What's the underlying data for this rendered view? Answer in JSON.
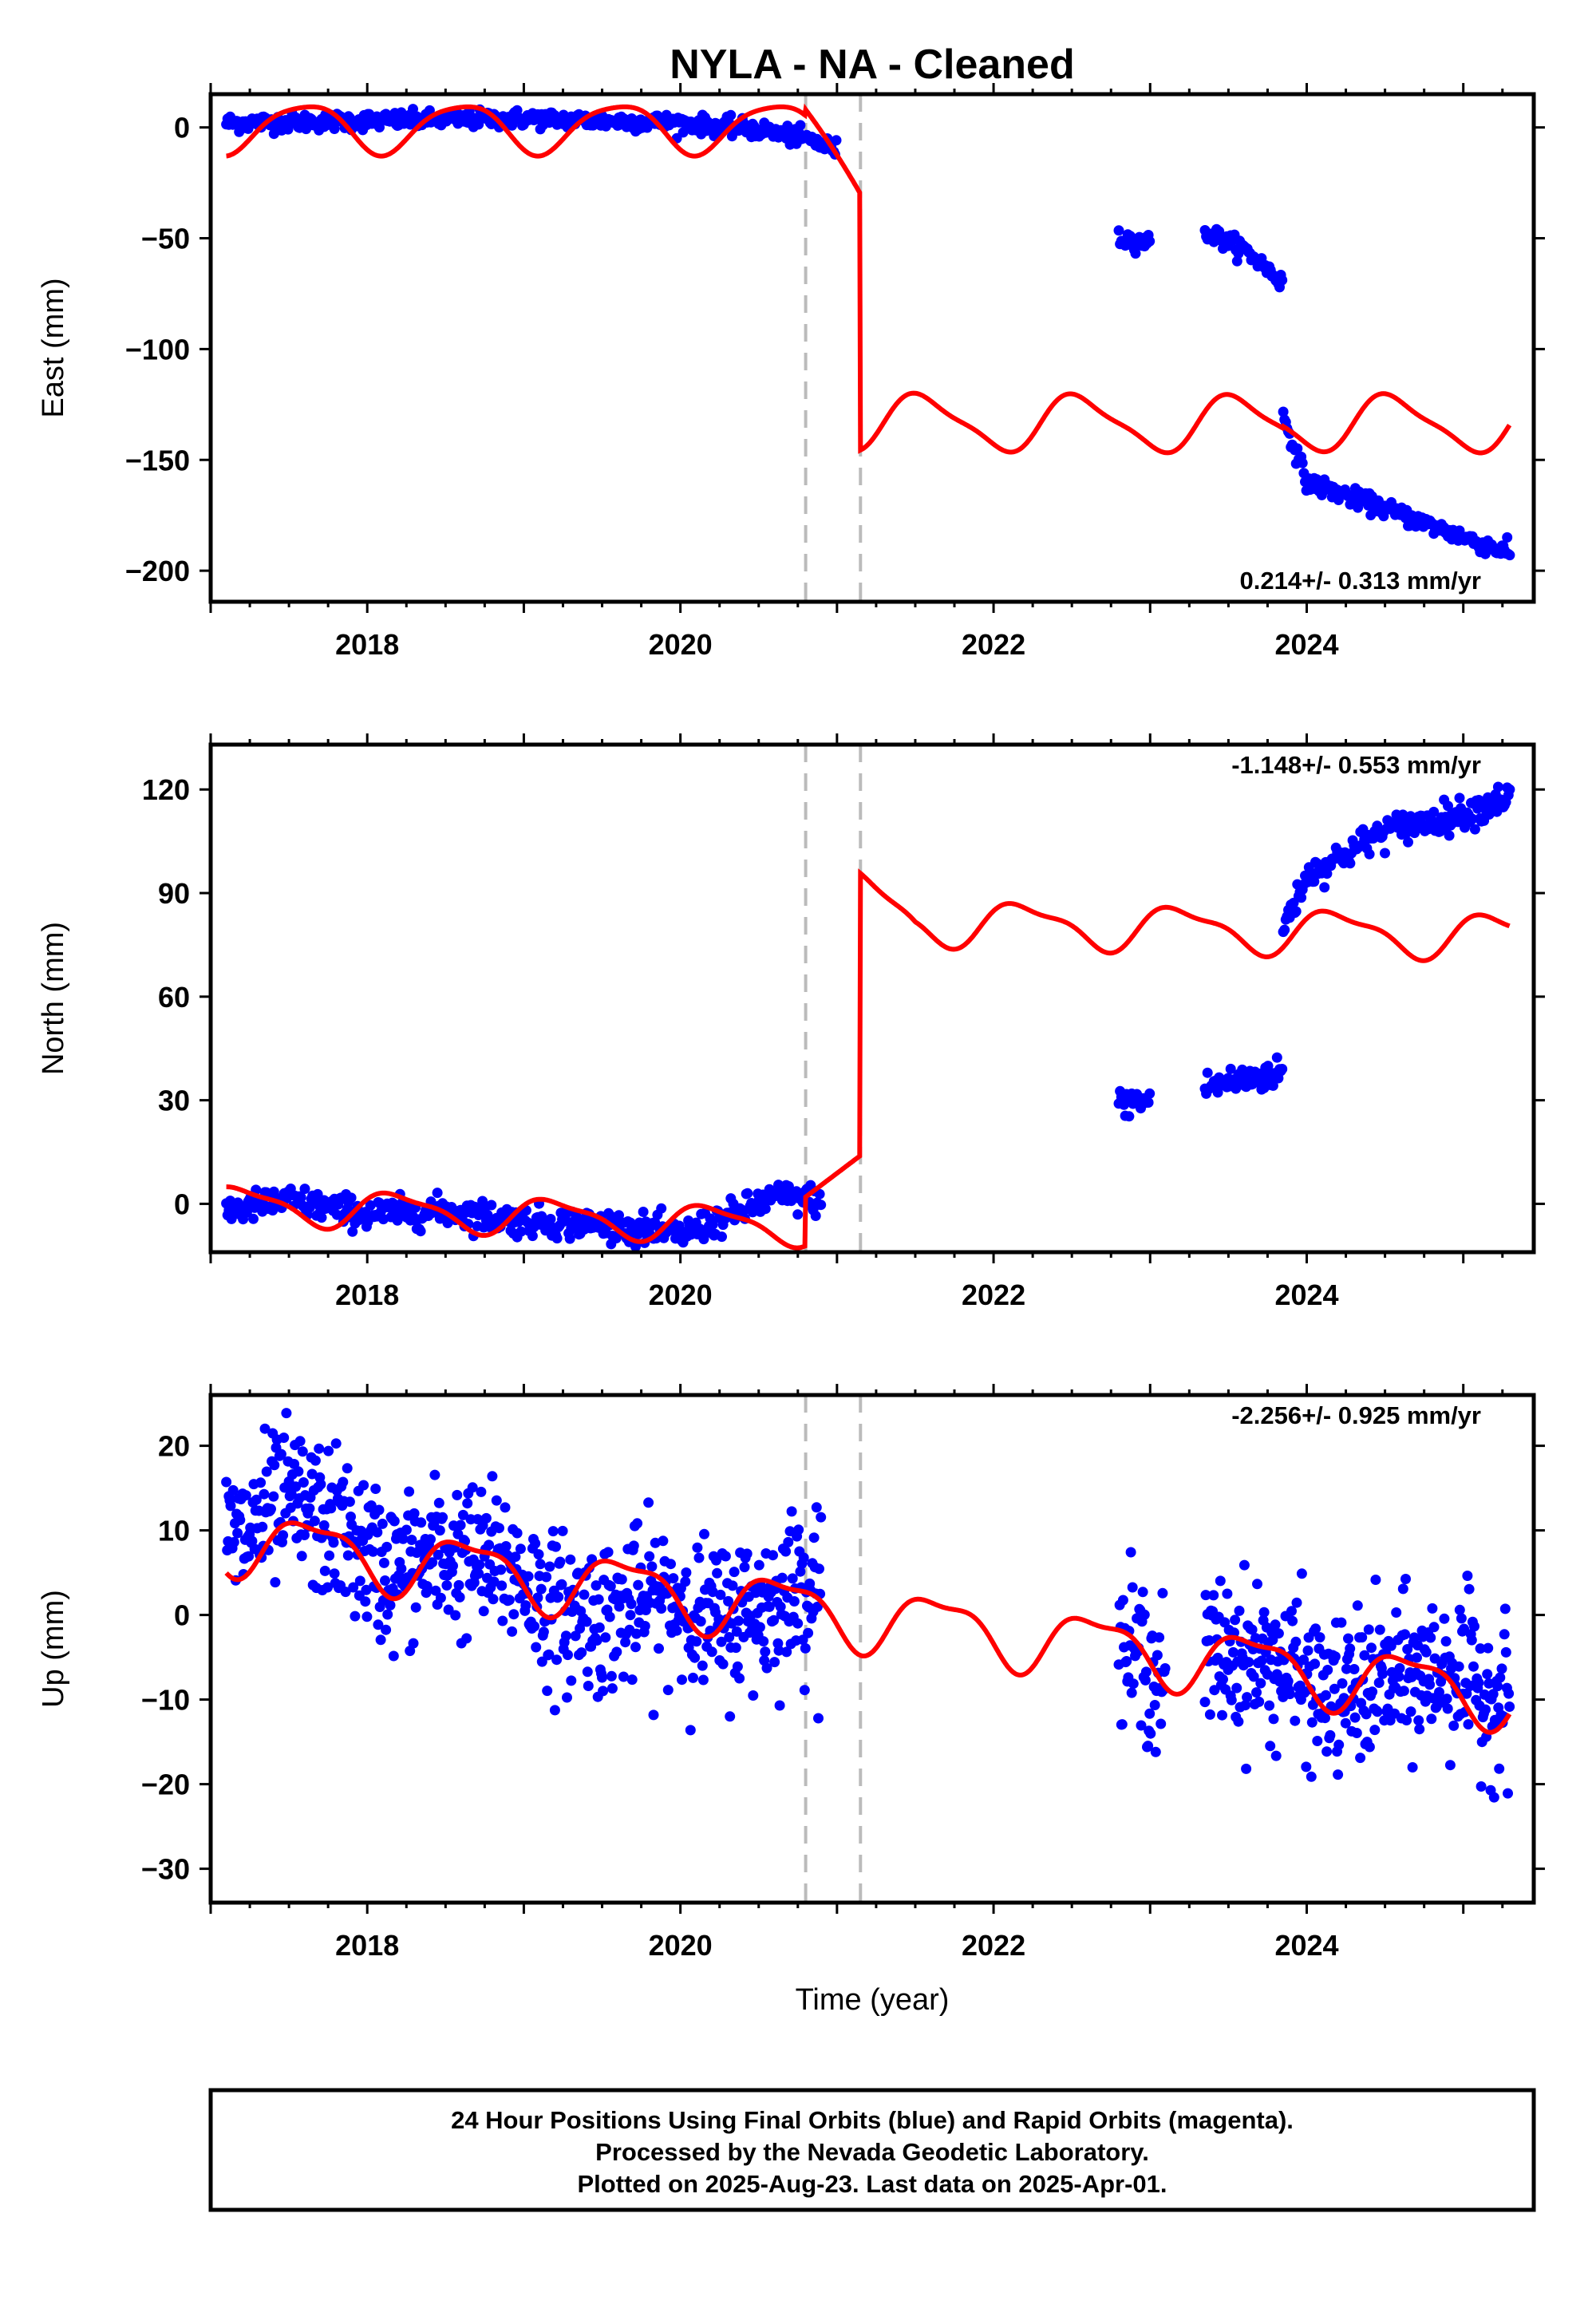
{
  "title": "NYLA  - NA - Cleaned",
  "xlabel": "Time (year)",
  "footer": {
    "line1": "24 Hour Positions Using Final Orbits (blue) and Rapid Orbits (magenta).",
    "line2": "Processed by the Nevada Geodetic Laboratory.",
    "line3": "Plotted on 2025-Aug-23. Last data on 2025-Apr-01."
  },
  "colors": {
    "data": "#0000ff",
    "model": "#ff0000",
    "breaks": "#bbbbbb"
  },
  "chart_data": [
    {
      "type": "scatter",
      "panel": "east",
      "ylabel": "East (mm)",
      "rate_label": "0.214+/- 0.313 mm/yr",
      "rate_position": "bottom-right",
      "xlim": [
        2017.0,
        2025.45
      ],
      "ylim": [
        -214,
        15
      ],
      "yticks": [
        0,
        -50,
        -100,
        -150,
        -200
      ],
      "ytick_labels": [
        "0",
        "−50",
        "−100",
        "−150",
        "−200"
      ],
      "xticks": [
        2018,
        2020,
        2022,
        2024
      ],
      "xtick_labels": [
        "2018",
        "2020",
        "2022",
        "2024"
      ],
      "breaks": [
        2020.8,
        2021.15
      ],
      "segments": [
        {
          "x": [
            2017.1,
            2018.0,
            2019.0,
            2020.0,
            2020.5,
            2020.8,
            2021.0
          ],
          "y": [
            2,
            3,
            4,
            2,
            -1,
            -5,
            -10
          ]
        },
        {
          "x": [
            2022.8,
            2023.0
          ],
          "y": [
            -50,
            -52
          ]
        },
        {
          "x": [
            2023.35,
            2023.6,
            2023.85
          ],
          "y": [
            -47,
            -55,
            -70
          ]
        },
        {
          "x": [
            2023.85,
            2024.0,
            2024.5,
            2025.0,
            2025.3
          ],
          "y": [
            -130,
            -160,
            -172,
            -185,
            -192
          ]
        }
      ],
      "model_points": [
        {
          "x": [
            2017.1,
            2018.0,
            2019.0,
            2020.0,
            2020.8
          ],
          "offset": 0
        },
        {
          "x": [
            2020.8,
            2021.15
          ],
          "y": [
            8,
            -25
          ]
        },
        {
          "x": [
            2021.15,
            2025.3
          ],
          "y": [
            -145,
            -142
          ]
        }
      ]
    },
    {
      "type": "scatter",
      "panel": "north",
      "ylabel": "North (mm)",
      "rate_label": "-1.148+/- 0.553 mm/yr",
      "rate_position": "top-right",
      "xlim": [
        2017.0,
        2025.45
      ],
      "ylim": [
        -14,
        133
      ],
      "yticks": [
        0,
        30,
        60,
        90,
        120
      ],
      "ytick_labels": [
        "0",
        "30",
        "60",
        "90",
        "120"
      ],
      "xticks": [
        2018,
        2020,
        2022,
        2024
      ],
      "xtick_labels": [
        "2018",
        "2020",
        "2022",
        "2024"
      ],
      "breaks": [
        2020.8,
        2021.15
      ],
      "segments": [
        {
          "x": [
            2017.1,
            2017.5,
            2018.0,
            2018.5,
            2019.0,
            2019.5,
            2020.0,
            2020.3,
            2020.6,
            2020.9
          ],
          "y": [
            -2,
            1,
            -3,
            -2,
            -5,
            -6,
            -9,
            -4,
            2,
            1
          ]
        },
        {
          "x": [
            2022.8,
            2023.0
          ],
          "y": [
            29,
            30
          ]
        },
        {
          "x": [
            2023.35,
            2023.85
          ],
          "y": [
            34,
            38
          ]
        },
        {
          "x": [
            2023.85,
            2024.0,
            2024.5,
            2025.0,
            2025.3
          ],
          "y": [
            80,
            95,
            108,
            113,
            118
          ]
        }
      ]
    },
    {
      "type": "scatter",
      "panel": "up",
      "ylabel": "Up (mm)",
      "rate_label": "-2.256+/- 0.925 mm/yr",
      "rate_position": "top-right",
      "xlabel": "Time (year)",
      "xlim": [
        2017.0,
        2025.45
      ],
      "ylim": [
        -34,
        26
      ],
      "yticks": [
        20,
        10,
        0,
        -10,
        -20,
        -30
      ],
      "ytick_labels": [
        "20",
        "10",
        "0",
        "−10",
        "−20",
        "−30"
      ],
      "xticks": [
        2018,
        2020,
        2022,
        2024
      ],
      "xtick_labels": [
        "2018",
        "2020",
        "2022",
        "2024"
      ],
      "breaks": [
        2020.8,
        2021.15
      ],
      "segments": [
        {
          "x": [
            2017.1,
            2017.5,
            2018.0,
            2018.5,
            2019.0,
            2019.5,
            2020.0,
            2020.5,
            2020.9
          ],
          "y": [
            12,
            15,
            8,
            6,
            5,
            -5,
            2,
            -2,
            7
          ]
        },
        {
          "x": [
            2022.8,
            2023.1
          ],
          "y": [
            -5,
            -7
          ]
        },
        {
          "x": [
            2023.35,
            2024.0,
            2024.5,
            2025.0,
            2025.3
          ],
          "y": [
            -5,
            -8,
            -10,
            -5,
            -8
          ]
        }
      ]
    }
  ]
}
